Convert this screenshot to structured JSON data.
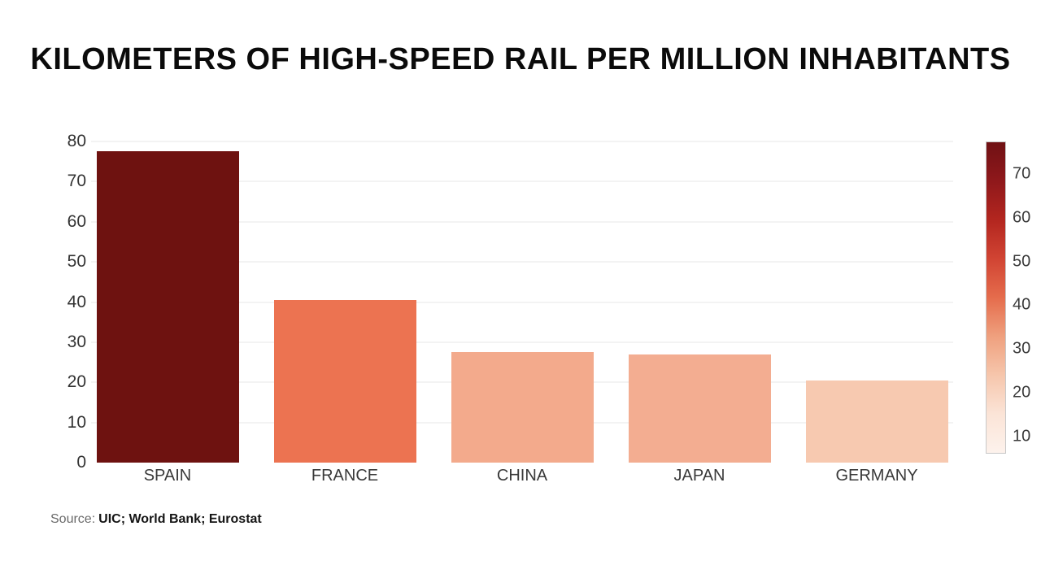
{
  "chart": {
    "background": "#ffffff",
    "title_color": "#0b0b0b"
  },
  "chart_data": {
    "type": "bar",
    "title": "KILOMETERS OF HIGH-SPEED RAIL PER MILLION INHABITANTS",
    "categories": [
      "SPAIN",
      "FRANCE",
      "CHINA",
      "JAPAN",
      "GERMANY"
    ],
    "values": [
      77.5,
      40.5,
      27.5,
      27,
      20.5
    ],
    "bar_colors": [
      "#6e1210",
      "#ec7351",
      "#f3aa8c",
      "#f3ad91",
      "#f7c9b0"
    ],
    "xlabel": "",
    "ylabel": "",
    "ylim": [
      0,
      80
    ],
    "yticks": [
      0,
      10,
      20,
      30,
      40,
      50,
      60,
      70,
      80
    ],
    "grid": true,
    "gridline_color": "#f3f3f3",
    "legend_position": "none",
    "colorbar": {
      "position": "right",
      "min": 6,
      "max": 77.5,
      "ticks": [
        70,
        60,
        50,
        40,
        30,
        20,
        10
      ],
      "gradient_top_to_bottom": [
        "#701114",
        "#8f181b",
        "#b3261f",
        "#d14433",
        "#e56c4c",
        "#efa07e",
        "#f6c6ac",
        "#fbe4d7",
        "#fdf2ec"
      ]
    }
  },
  "source": {
    "prefix": "Source:",
    "citation": "UIC; World Bank; Eurostat"
  }
}
